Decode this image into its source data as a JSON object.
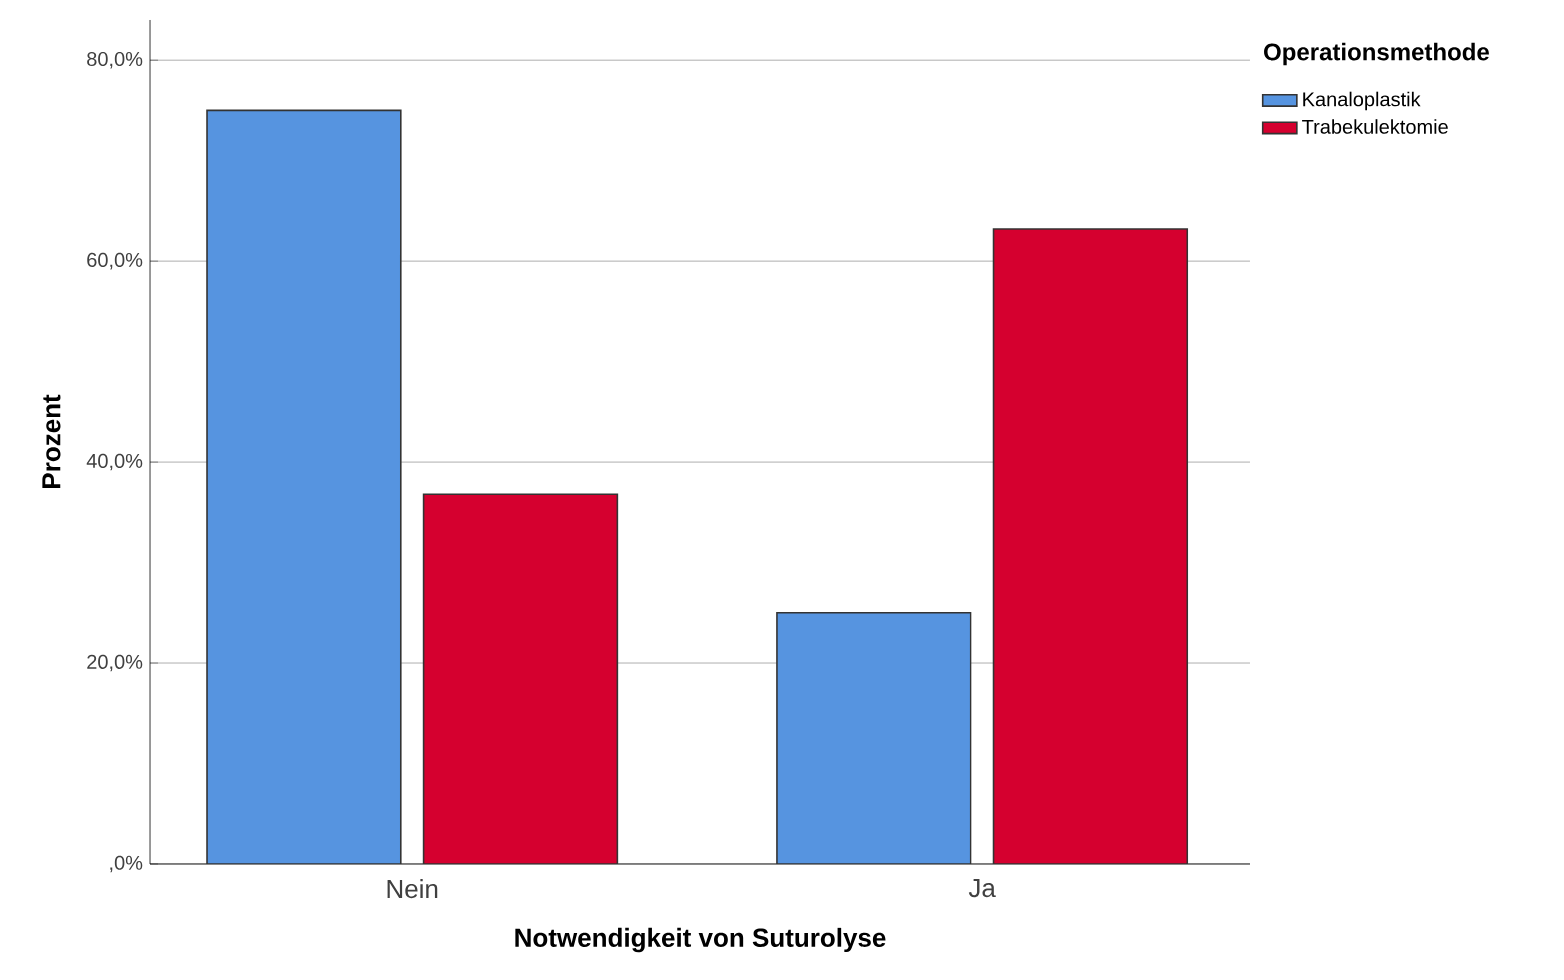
{
  "chart_data": {
    "type": "bar",
    "xlabel": "Notwendigkeit von Suturolyse",
    "ylabel": "Prozent",
    "legend_title": "Operationsmethode",
    "categories": [
      "Nein",
      "Ja"
    ],
    "series": [
      {
        "name": "Kanaloplastik",
        "color": "#5694e0",
        "values": [
          75.0,
          25.0
        ]
      },
      {
        "name": "Trabekulektomie",
        "color": "#d5002f",
        "values": [
          36.8,
          63.2
        ]
      }
    ],
    "ylim": [
      0,
      84
    ],
    "yticks": [
      {
        "value": 0,
        "label": ",0%"
      },
      {
        "value": 20,
        "label": "20,0%"
      },
      {
        "value": 40,
        "label": "40,0%"
      },
      {
        "value": 60,
        "label": "60,0%"
      },
      {
        "value": 80,
        "label": "80,0%"
      }
    ],
    "grid": "y",
    "legend": "top right"
  }
}
